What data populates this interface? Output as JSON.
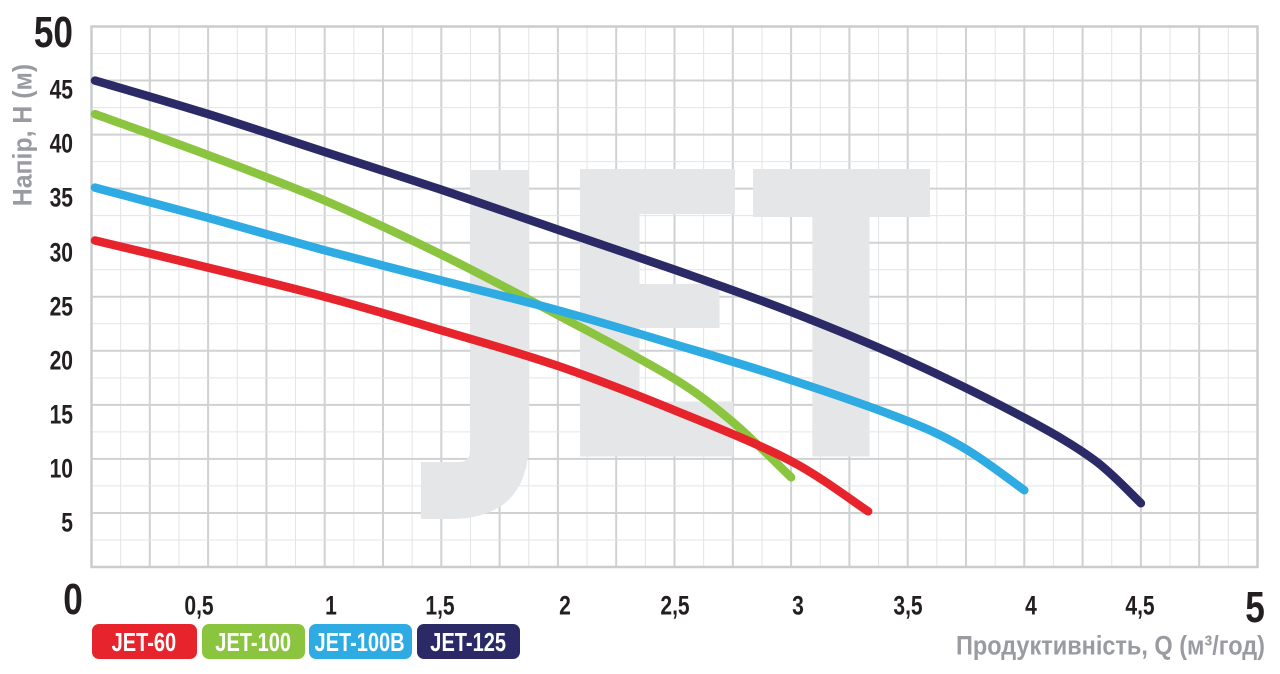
{
  "chart_data": {
    "type": "line",
    "title": "",
    "xlabel": "Продуктивність, Q (м³/год)",
    "ylabel": "Напір, H (м)",
    "xlim": [
      0,
      5
    ],
    "ylim": [
      0,
      50
    ],
    "x_major_step": 0.25,
    "x_minor_step": 0.125,
    "y_major_step": 5,
    "y_minor_step": 2.5,
    "grid": "on",
    "legend_position": "bottom-left",
    "watermark_text": "JET",
    "x_origin_label": "0",
    "x_max_label": "5",
    "y_max_label": "50",
    "x_ticks": [
      {
        "value": 0.5,
        "label": "0,5"
      },
      {
        "value": 1,
        "label": "1"
      },
      {
        "value": 1.5,
        "label": "1,5"
      },
      {
        "value": 2,
        "label": "2"
      },
      {
        "value": 2.5,
        "label": "2,5"
      },
      {
        "value": 3,
        "label": "3"
      },
      {
        "value": 3.5,
        "label": "3,5"
      },
      {
        "value": 4,
        "label": "4"
      },
      {
        "value": 4.5,
        "label": "4,5"
      }
    ],
    "y_ticks": [
      {
        "value": 5,
        "label": "5"
      },
      {
        "value": 10,
        "label": "10"
      },
      {
        "value": 15,
        "label": "15"
      },
      {
        "value": 20,
        "label": "20"
      },
      {
        "value": 25,
        "label": "25"
      },
      {
        "value": 30,
        "label": "30"
      },
      {
        "value": 35,
        "label": "35"
      },
      {
        "value": 40,
        "label": "40"
      },
      {
        "value": 45,
        "label": "45"
      }
    ],
    "series": [
      {
        "name": "JET-60",
        "color": "#e7242b",
        "points": [
          [
            0.015,
            30.2
          ],
          [
            0.5,
            27.7
          ],
          [
            1.0,
            25.0
          ],
          [
            1.5,
            21.9
          ],
          [
            2.0,
            18.6
          ],
          [
            2.5,
            14.5
          ],
          [
            3.0,
            9.8
          ],
          [
            3.33,
            5.15
          ]
        ]
      },
      {
        "name": "JET-100",
        "color": "#8bc540",
        "points": [
          [
            0.015,
            41.9
          ],
          [
            0.5,
            38.1
          ],
          [
            1.0,
            33.9
          ],
          [
            1.5,
            28.9
          ],
          [
            2.0,
            23.3
          ],
          [
            2.5,
            17.4
          ],
          [
            2.75,
            13.4
          ],
          [
            3.0,
            8.3
          ]
        ]
      },
      {
        "name": "JET-100B",
        "color": "#2dabe2",
        "points": [
          [
            0.015,
            35.1
          ],
          [
            0.5,
            32.3
          ],
          [
            1.0,
            29.3
          ],
          [
            1.5,
            26.5
          ],
          [
            2.0,
            23.75
          ],
          [
            2.5,
            20.6
          ],
          [
            3.0,
            17.3
          ],
          [
            3.5,
            13.5
          ],
          [
            3.75,
            10.9
          ],
          [
            4.0,
            7.1
          ]
        ]
      },
      {
        "name": "JET-125",
        "color": "#2b2a67",
        "points": [
          [
            0.015,
            45.0
          ],
          [
            0.5,
            41.9
          ],
          [
            1.0,
            38.4
          ],
          [
            1.5,
            34.9
          ],
          [
            2.0,
            31.2
          ],
          [
            2.5,
            27.5
          ],
          [
            3.0,
            23.6
          ],
          [
            3.5,
            19.1
          ],
          [
            4.0,
            13.8
          ],
          [
            4.3,
            9.9
          ],
          [
            4.5,
            5.9
          ]
        ]
      }
    ]
  }
}
